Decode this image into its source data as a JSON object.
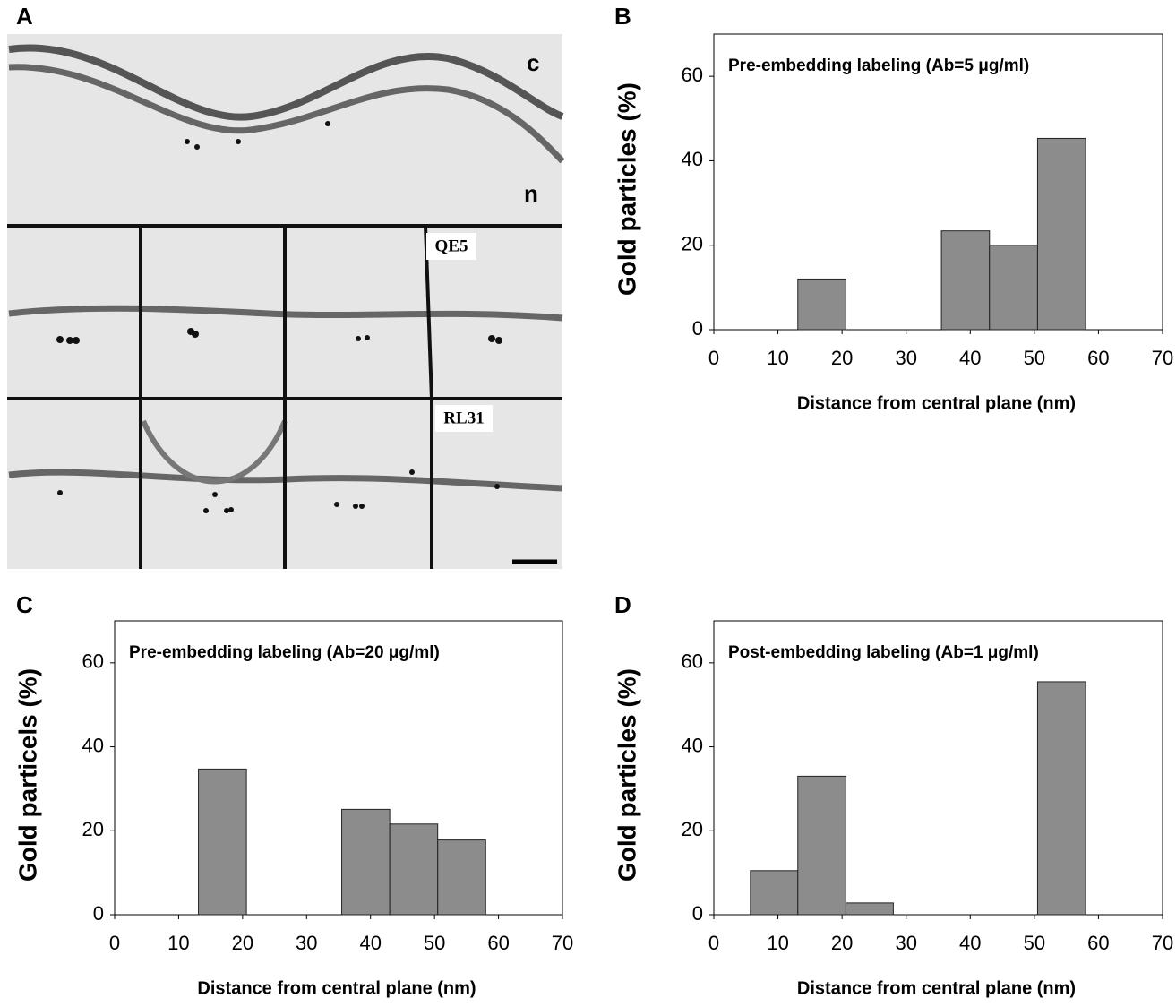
{
  "micrograph": {
    "label": "A",
    "annotations": [
      "c",
      "n",
      "QE5",
      "RL31"
    ]
  },
  "chart_data": [
    {
      "type": "histogram",
      "label": "B",
      "title": "Pre-embedding labeling (Ab=5 μg/ml)",
      "x_label": "Distance from central plane (nm)",
      "y_label": "Gold particles (%)",
      "bins": [
        5.7,
        13.1,
        20.6,
        28.0,
        35.5,
        43.0,
        50.5,
        58.0
      ],
      "values": [
        0,
        12,
        0,
        0,
        23.4,
        20,
        45.3
      ],
      "color": "#8c8c8c",
      "xlim": [
        0,
        70
      ],
      "ylim": [
        0,
        70
      ],
      "xticks": [
        0,
        10,
        20,
        30,
        40,
        50,
        60,
        70
      ],
      "yticks": [
        0,
        20,
        40,
        60
      ]
    },
    {
      "type": "histogram",
      "label": "C",
      "title": "Pre-embedding labeling (Ab=20 μg/ml)",
      "x_label": "Distance from central plane (nm)",
      "y_label": "Gold particels (%)",
      "bins": [
        5.7,
        13.1,
        20.6,
        28.0,
        35.5,
        43.0,
        50.5,
        58.0
      ],
      "values": [
        0,
        34.7,
        0,
        0,
        25.1,
        21.6,
        17.8
      ],
      "color": "#8c8c8c",
      "xlim": [
        0,
        70
      ],
      "ylim": [
        0,
        70
      ],
      "xticks": [
        0,
        10,
        20,
        30,
        40,
        50,
        60,
        70
      ],
      "yticks": [
        0,
        20,
        40,
        60
      ]
    },
    {
      "type": "histogram",
      "label": "D",
      "title": "Post-embedding labeling (Ab=1 μg/ml)",
      "x_label": "Distance from central plane (nm)",
      "y_label": "Gold particles (%)",
      "bins": [
        5.7,
        13.1,
        20.6,
        28.0,
        35.5,
        43.0,
        50.5,
        58.0
      ],
      "values": [
        10.5,
        33,
        2.8,
        0,
        0,
        0,
        55.5
      ],
      "color": "#8c8c8c",
      "xlim": [
        0,
        70
      ],
      "ylim": [
        0,
        70
      ],
      "xticks": [
        0,
        10,
        20,
        30,
        40,
        50,
        60,
        70
      ],
      "yticks": [
        0,
        20,
        40,
        60
      ]
    }
  ]
}
